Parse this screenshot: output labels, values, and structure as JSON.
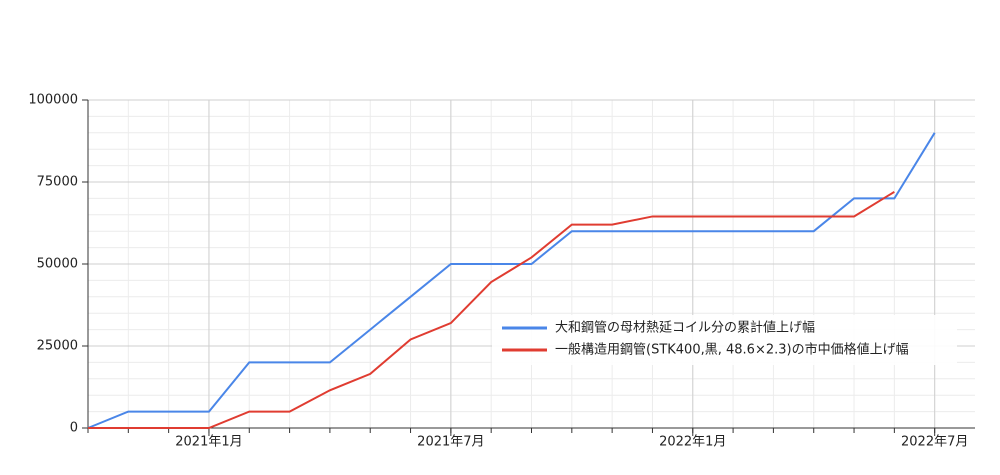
{
  "chart_data": {
    "type": "line",
    "x": [
      "2020-10",
      "2020-11",
      "2020-12",
      "2021-01",
      "2021-02",
      "2021-03",
      "2021-04",
      "2021-05",
      "2021-06",
      "2021-07",
      "2021-08",
      "2021-09",
      "2021-10",
      "2021-11",
      "2021-12",
      "2022-01",
      "2022-02",
      "2022-03",
      "2022-04",
      "2022-05",
      "2022-06",
      "2022-07"
    ],
    "series": [
      {
        "name": "大和鋼管の母材熱延コイル分の累計値上げ幅",
        "color": "#4a86e8",
        "values": [
          0,
          5000,
          5000,
          5000,
          20000,
          20000,
          20000,
          30000,
          40000,
          50000,
          50000,
          50000,
          60000,
          60000,
          60000,
          60000,
          60000,
          60000,
          60000,
          70000,
          70000,
          90000
        ]
      },
      {
        "name": "一般構造用鋼管(STK400,黒, 48.6×2.3)の市中価格値上げ幅",
        "color": "#e03c31",
        "values": [
          0,
          0,
          0,
          0,
          5000,
          5000,
          11500,
          16500,
          27000,
          32000,
          44500,
          52000,
          62000,
          62000,
          64500,
          64500,
          64500,
          64500,
          64500,
          64500,
          72000,
          null
        ]
      }
    ],
    "xlim": [
      "2020-10",
      "2022-08"
    ],
    "xticks": [
      {
        "value": "2021-01",
        "label": "2021年1月"
      },
      {
        "value": "2021-07",
        "label": "2021年7月"
      },
      {
        "value": "2022-01",
        "label": "2022年1月"
      },
      {
        "value": "2022-07",
        "label": "2022年7月"
      }
    ],
    "ylim": [
      0,
      100000
    ],
    "yticks": [
      0,
      25000,
      50000,
      75000,
      100000
    ],
    "grid": true,
    "legend": "right"
  }
}
